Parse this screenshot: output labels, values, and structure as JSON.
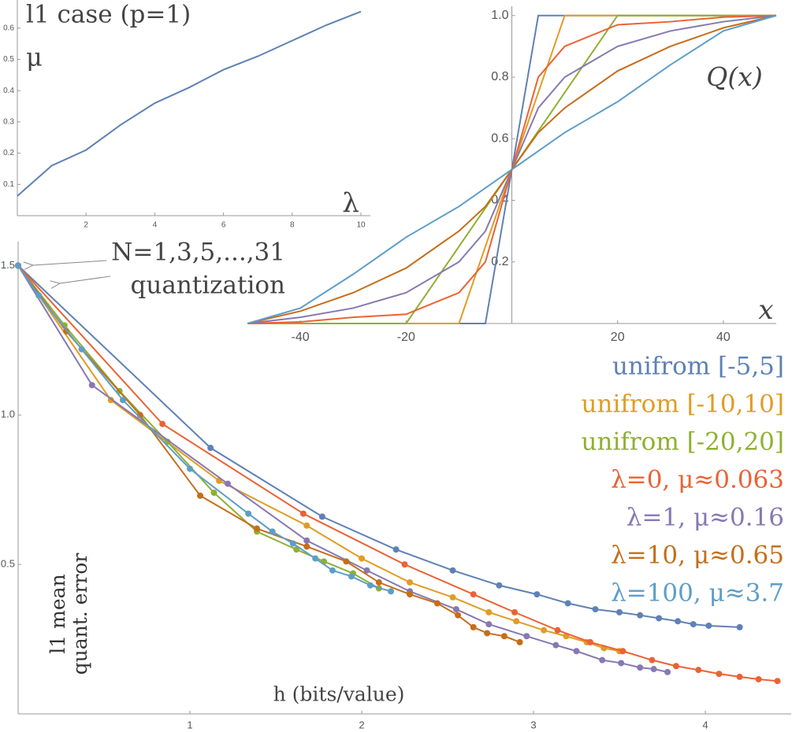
{
  "chart_data": [
    {
      "type": "line",
      "title": "l1 case (p=1)",
      "ylabel": "μ",
      "xlabel": "λ",
      "color": "#5e81b5",
      "x": [
        0,
        1,
        2,
        3,
        4,
        5,
        6,
        7,
        8,
        9,
        10
      ],
      "values": [
        0.063,
        0.16,
        0.21,
        0.29,
        0.36,
        0.41,
        0.467,
        0.51,
        0.56,
        0.61,
        0.653
      ],
      "xlim": [
        0,
        10
      ],
      "ylim": [
        0,
        0.69
      ],
      "xticks": [
        2,
        4,
        6,
        8,
        10
      ],
      "yticks": [
        0.1,
        0.2,
        0.3,
        0.4,
        0.5,
        0.6
      ]
    },
    {
      "type": "line",
      "ylabel": "Q(x)",
      "xlabel": "x",
      "x": [
        -50,
        -40,
        -30,
        -20,
        -10,
        -5,
        0,
        5,
        10,
        20,
        30,
        40,
        50
      ],
      "series": [
        {
          "name": "unifrom [-5,5]",
          "color": "#5e81b5",
          "values": [
            0,
            0,
            0,
            0,
            0,
            0,
            0.5,
            1,
            1,
            1,
            1,
            1,
            1
          ]
        },
        {
          "name": "unifrom [-10,10]",
          "color": "#e19c24",
          "values": [
            0,
            0,
            0,
            0,
            0,
            0.25,
            0.5,
            0.75,
            1,
            1,
            1,
            1,
            1
          ]
        },
        {
          "name": "unifrom [-20,20]",
          "color": "#8fb032",
          "values": [
            0,
            0,
            0,
            0,
            0.25,
            0.375,
            0.5,
            0.625,
            0.75,
            1,
            1,
            1,
            1
          ]
        },
        {
          "name": "λ=0, μ≈0.063",
          "color": "#eb6235",
          "values": [
            0,
            0.005,
            0.02,
            0.03,
            0.1,
            0.2,
            0.5,
            0.8,
            0.9,
            0.97,
            0.98,
            0.995,
            1
          ]
        },
        {
          "name": "λ=1, μ≈0.16",
          "color": "#8778b3",
          "values": [
            0,
            0.02,
            0.05,
            0.1,
            0.2,
            0.3,
            0.5,
            0.7,
            0.8,
            0.9,
            0.95,
            0.98,
            1
          ]
        },
        {
          "name": "λ=10, μ≈0.65",
          "color": "#c56e1a",
          "values": [
            0,
            0.04,
            0.1,
            0.18,
            0.3,
            0.38,
            0.5,
            0.62,
            0.7,
            0.82,
            0.9,
            0.96,
            1
          ]
        },
        {
          "name": "λ=100, μ≈3.7",
          "color": "#5d9ec7",
          "values": [
            0,
            0.05,
            0.16,
            0.28,
            0.38,
            0.44,
            0.5,
            0.56,
            0.62,
            0.72,
            0.84,
            0.95,
            1
          ]
        }
      ],
      "xlim": [
        -50,
        50
      ],
      "ylim": [
        0,
        1.03
      ],
      "xticks": [
        -40,
        -20,
        20,
        40
      ],
      "yticks": [
        0.2,
        0.4,
        0.6,
        0.8,
        {
          "value": 1,
          "label": "1.0"
        }
      ]
    },
    {
      "type": "line",
      "markers": true,
      "xlabel": "h (bits/value)",
      "ylabel": "l1 mean quant. error",
      "annotations": [
        "N=1,3,5,...,31",
        "quantization"
      ],
      "series": [
        {
          "name": "unifrom [-5,5]",
          "color": "#5e81b5",
          "x": [
            0,
            1.12,
            1.77,
            2.2,
            2.53,
            2.8,
            3.02,
            3.2,
            3.36,
            3.5,
            3.62,
            3.73,
            3.84,
            3.93,
            4.02,
            4.2
          ],
          "values": [
            1.5,
            0.89,
            0.66,
            0.55,
            0.48,
            0.43,
            0.4,
            0.37,
            0.35,
            0.34,
            0.33,
            0.32,
            0.31,
            0.3,
            0.295,
            0.29
          ]
        },
        {
          "name": "unifrom [-10,10]",
          "color": "#e19c24",
          "x": [
            0,
            0.54,
            1.17,
            1.68,
            2.0,
            2.28,
            2.53,
            2.74,
            2.9,
            3.06,
            3.19,
            3.31,
            3.41,
            3.5
          ],
          "values": [
            1.5,
            1.05,
            0.78,
            0.63,
            0.52,
            0.44,
            0.39,
            0.34,
            0.31,
            0.28,
            0.26,
            0.24,
            0.22,
            0.21
          ]
        },
        {
          "name": "unifrom [-20,20]",
          "color": "#8fb032",
          "x": [
            0,
            0.27,
            0.59,
            0.87,
            1.14,
            1.39,
            1.62,
            1.78,
            1.95,
            2.1
          ],
          "values": [
            1.5,
            1.3,
            1.08,
            0.91,
            0.74,
            0.61,
            0.55,
            0.51,
            0.47,
            0.42
          ]
        },
        {
          "name": "λ=0, μ≈0.063",
          "color": "#eb6235",
          "x": [
            0,
            0.84,
            1.66,
            2.25,
            2.65,
            2.89,
            3.14,
            3.33,
            3.52,
            3.69,
            3.83,
            3.96,
            4.08,
            4.2,
            4.31,
            4.42
          ],
          "values": [
            1.5,
            0.97,
            0.67,
            0.5,
            0.4,
            0.34,
            0.28,
            0.24,
            0.21,
            0.18,
            0.16,
            0.147,
            0.134,
            0.124,
            0.116,
            0.11
          ]
        },
        {
          "name": "λ=1, μ≈0.16",
          "color": "#8778b3",
          "x": [
            0,
            0.43,
            1.22,
            1.68,
            2.03,
            2.28,
            2.55,
            2.74,
            2.96,
            3.13,
            3.25,
            3.4,
            3.51,
            3.62,
            3.7,
            3.78
          ],
          "values": [
            1.5,
            1.1,
            0.77,
            0.58,
            0.48,
            0.41,
            0.35,
            0.3,
            0.26,
            0.23,
            0.21,
            0.18,
            0.17,
            0.155,
            0.15,
            0.14
          ]
        },
        {
          "name": "λ=10, μ≈0.65",
          "color": "#c56e1a",
          "x": [
            0,
            0.28,
            0.71,
            1.06,
            1.39,
            1.68,
            1.91,
            2.1,
            2.28,
            2.44,
            2.56,
            2.65,
            2.73,
            2.83,
            2.92
          ],
          "values": [
            1.5,
            1.28,
            1.0,
            0.73,
            0.62,
            0.56,
            0.51,
            0.44,
            0.4,
            0.37,
            0.33,
            0.29,
            0.27,
            0.26,
            0.24
          ]
        },
        {
          "name": "λ=100, μ≈3.7",
          "color": "#5d9ec7",
          "x": [
            0,
            0.12,
            0.37,
            0.61,
            1.0,
            1.34,
            1.48,
            1.6,
            1.73,
            1.83,
            1.94,
            2.05,
            2.17
          ],
          "values": [
            1.5,
            1.4,
            1.22,
            1.05,
            0.82,
            0.67,
            0.61,
            0.57,
            0.52,
            0.48,
            0.46,
            0.43,
            0.41
          ]
        }
      ],
      "xlim": [
        0,
        4.5
      ],
      "ylim": [
        0,
        1.58
      ],
      "xticks": [
        1,
        2,
        3,
        4
      ],
      "yticks": [
        0.5,
        {
          "value": 1,
          "label": "1.0"
        },
        {
          "value": 1.5,
          "label": "1.5"
        }
      ]
    }
  ]
}
